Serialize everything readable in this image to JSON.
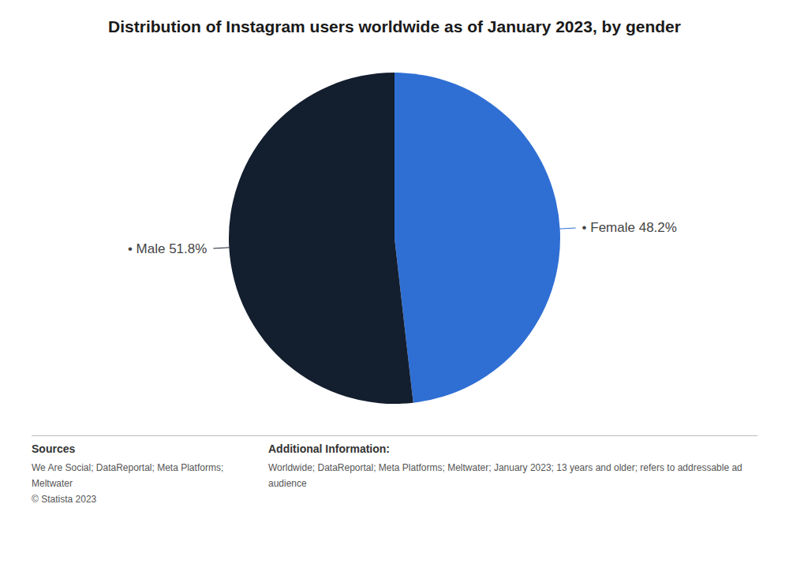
{
  "chart_data": {
    "type": "pie",
    "title": "Distribution of Instagram users worldwide as of January 2023, by gender",
    "categories": [
      "Female",
      "Male"
    ],
    "values": [
      48.2,
      51.8
    ],
    "value_labels": [
      "• Female 48.2%",
      "• Male 51.8%"
    ],
    "data_labels": true,
    "colors": [
      "#2f6fd4",
      "#131e2e"
    ],
    "annotations": [
      {
        "title": "Sources",
        "lines": [
          "We Are Social; DataReportal; Meta Platforms;",
          "Meltwater",
          "© Statista 2023"
        ]
      },
      {
        "title": "Additional Information:",
        "lines": [
          "Worldwide; DataReportal; Meta Platforms; Meltwater; January 2023; 13 years and older; refers to addressable ad audience"
        ]
      }
    ]
  }
}
